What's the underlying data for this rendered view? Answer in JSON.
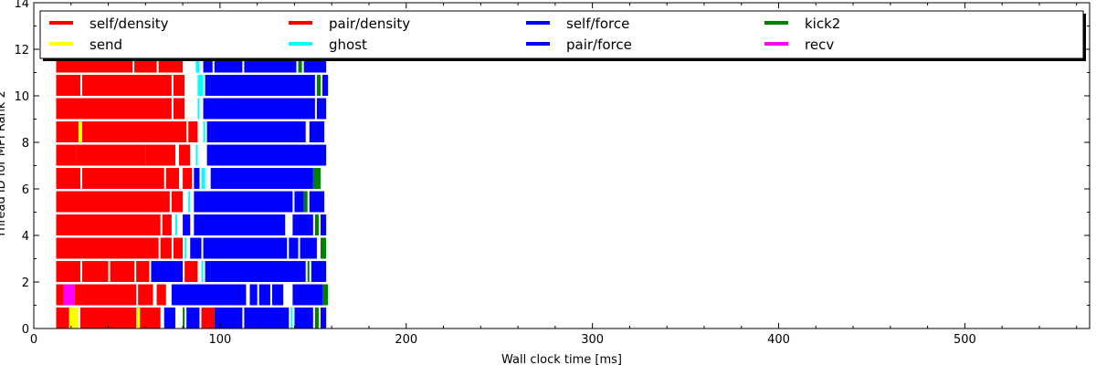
{
  "chart_data": {
    "type": "bar",
    "orientation": "horizontal-timeline",
    "xlabel": "Wall clock time [ms]",
    "ylabel": "Thread ID for MPI Rank 2",
    "xlim": [
      0,
      567
    ],
    "ylim": [
      0,
      14
    ],
    "x_ticks": [
      0,
      100,
      200,
      300,
      400,
      500
    ],
    "y_ticks": [
      0,
      2,
      4,
      6,
      8,
      10,
      12,
      14
    ],
    "grid": false,
    "legend": {
      "placement": "top",
      "columns": 5,
      "entries": [
        {
          "name": "self/density",
          "color": "#ff0000"
        },
        {
          "name": "send",
          "color": "#ffff00"
        },
        {
          "name": "pair/density",
          "color": "#ff0000"
        },
        {
          "name": "ghost",
          "color": "#00ffff"
        },
        {
          "name": "self/force",
          "color": "#0000ff"
        },
        {
          "name": "pair/force",
          "color": "#0000ff"
        },
        {
          "name": "kick2",
          "color": "#008000"
        },
        {
          "name": "recv",
          "color": "#ff00ff"
        }
      ]
    },
    "series": [
      {
        "thread": 0,
        "segments": [
          {
            "task": "pair/density",
            "start": 12,
            "end": 19
          },
          {
            "task": "send",
            "start": 19,
            "end": 24
          },
          {
            "task": "pair/density",
            "start": 25,
            "end": 55
          },
          {
            "task": "send",
            "start": 55,
            "end": 57
          },
          {
            "task": "pair/density",
            "start": 57,
            "end": 68
          },
          {
            "task": "pair/force",
            "start": 70,
            "end": 76
          },
          {
            "task": "kick2",
            "start": 80,
            "end": 81
          },
          {
            "task": "pair/force",
            "start": 82,
            "end": 89
          },
          {
            "task": "pair/density",
            "start": 90,
            "end": 97
          },
          {
            "task": "pair/force",
            "start": 97,
            "end": 112
          },
          {
            "task": "pair/force",
            "start": 113,
            "end": 137
          },
          {
            "task": "ghost",
            "start": 138,
            "end": 139
          },
          {
            "task": "pair/force",
            "start": 140,
            "end": 150
          },
          {
            "task": "kick2",
            "start": 151,
            "end": 153
          },
          {
            "task": "pair/force",
            "start": 154,
            "end": 157
          }
        ]
      },
      {
        "thread": 1,
        "segments": [
          {
            "task": "pair/density",
            "start": 12,
            "end": 16
          },
          {
            "task": "recv",
            "start": 16,
            "end": 22
          },
          {
            "task": "pair/density",
            "start": 22,
            "end": 55
          },
          {
            "task": "pair/density",
            "start": 56,
            "end": 64
          },
          {
            "task": "pair/density",
            "start": 66,
            "end": 71
          },
          {
            "task": "pair/force",
            "start": 74,
            "end": 114
          },
          {
            "task": "pair/force",
            "start": 116,
            "end": 120
          },
          {
            "task": "pair/force",
            "start": 121,
            "end": 127
          },
          {
            "task": "pair/force",
            "start": 128,
            "end": 134
          },
          {
            "task": "pair/force",
            "start": 139,
            "end": 155
          },
          {
            "task": "kick2",
            "start": 155,
            "end": 158
          }
        ]
      },
      {
        "thread": 2,
        "segments": [
          {
            "task": "pair/density",
            "start": 12,
            "end": 25
          },
          {
            "task": "pair/density",
            "start": 26,
            "end": 40
          },
          {
            "task": "pair/density",
            "start": 41,
            "end": 54
          },
          {
            "task": "pair/density",
            "start": 55,
            "end": 62
          },
          {
            "task": "pair/force",
            "start": 63,
            "end": 80
          },
          {
            "task": "pair/density",
            "start": 81,
            "end": 88
          },
          {
            "task": "ghost",
            "start": 90,
            "end": 91
          },
          {
            "task": "pair/force",
            "start": 92,
            "end": 146
          },
          {
            "task": "kick2",
            "start": 147,
            "end": 148
          },
          {
            "task": "pair/force",
            "start": 149,
            "end": 157
          }
        ]
      },
      {
        "thread": 3,
        "segments": [
          {
            "task": "pair/density",
            "start": 12,
            "end": 67
          },
          {
            "task": "pair/density",
            "start": 68,
            "end": 74
          },
          {
            "task": "pair/density",
            "start": 75,
            "end": 80
          },
          {
            "task": "ghost",
            "start": 81,
            "end": 82
          },
          {
            "task": "pair/force",
            "start": 84,
            "end": 90
          },
          {
            "task": "pair/force",
            "start": 91,
            "end": 136
          },
          {
            "task": "pair/force",
            "start": 137,
            "end": 142
          },
          {
            "task": "pair/force",
            "start": 143,
            "end": 152
          },
          {
            "task": "kick2",
            "start": 154,
            "end": 157
          }
        ]
      },
      {
        "thread": 4,
        "segments": [
          {
            "task": "pair/density",
            "start": 12,
            "end": 68
          },
          {
            "task": "pair/density",
            "start": 69,
            "end": 74
          },
          {
            "task": "ghost",
            "start": 76,
            "end": 77
          },
          {
            "task": "pair/force",
            "start": 80,
            "end": 84
          },
          {
            "task": "pair/force",
            "start": 86,
            "end": 135
          },
          {
            "task": "pair/force",
            "start": 139,
            "end": 150
          },
          {
            "task": "kick2",
            "start": 151,
            "end": 153
          },
          {
            "task": "pair/force",
            "start": 154,
            "end": 157
          }
        ]
      },
      {
        "thread": 5,
        "segments": [
          {
            "task": "pair/density",
            "start": 12,
            "end": 73
          },
          {
            "task": "pair/density",
            "start": 74,
            "end": 80
          },
          {
            "task": "ghost",
            "start": 83,
            "end": 84
          },
          {
            "task": "pair/force",
            "start": 86,
            "end": 139
          },
          {
            "task": "pair/force",
            "start": 140,
            "end": 145
          },
          {
            "task": "kick2",
            "start": 145,
            "end": 147
          },
          {
            "task": "pair/force",
            "start": 148,
            "end": 156
          }
        ]
      },
      {
        "thread": 6,
        "segments": [
          {
            "task": "pair/density",
            "start": 12,
            "end": 25
          },
          {
            "task": "pair/density",
            "start": 26,
            "end": 70
          },
          {
            "task": "pair/density",
            "start": 71,
            "end": 78
          },
          {
            "task": "pair/density",
            "start": 80,
            "end": 85
          },
          {
            "task": "pair/force",
            "start": 86,
            "end": 89
          },
          {
            "task": "ghost",
            "start": 90,
            "end": 92
          },
          {
            "task": "pair/force",
            "start": 95,
            "end": 150
          },
          {
            "task": "kick2",
            "start": 150,
            "end": 154
          }
        ]
      },
      {
        "thread": 7,
        "segments": [
          {
            "task": "pair/density",
            "start": 12,
            "end": 23
          },
          {
            "task": "pair/density",
            "start": 23,
            "end": 60
          },
          {
            "task": "pair/density",
            "start": 60,
            "end": 76
          },
          {
            "task": "pair/density",
            "start": 78,
            "end": 84
          },
          {
            "task": "ghost",
            "start": 87,
            "end": 88
          },
          {
            "task": "pair/force",
            "start": 93,
            "end": 157
          }
        ]
      },
      {
        "thread": 8,
        "segments": [
          {
            "task": "pair/density",
            "start": 12,
            "end": 24
          },
          {
            "task": "send",
            "start": 24,
            "end": 26
          },
          {
            "task": "pair/density",
            "start": 26,
            "end": 82
          },
          {
            "task": "pair/density",
            "start": 83,
            "end": 88
          },
          {
            "task": "ghost",
            "start": 91,
            "end": 92
          },
          {
            "task": "pair/force",
            "start": 93,
            "end": 146
          },
          {
            "task": "pair/force",
            "start": 148,
            "end": 156
          }
        ]
      },
      {
        "thread": 9,
        "segments": [
          {
            "task": "pair/density",
            "start": 12,
            "end": 74
          },
          {
            "task": "pair/density",
            "start": 75,
            "end": 81
          },
          {
            "task": "ghost",
            "start": 88,
            "end": 89
          },
          {
            "task": "pair/force",
            "start": 91,
            "end": 151
          },
          {
            "task": "pair/force",
            "start": 152,
            "end": 157
          }
        ]
      },
      {
        "thread": 10,
        "segments": [
          {
            "task": "pair/density",
            "start": 12,
            "end": 25
          },
          {
            "task": "pair/density",
            "start": 26,
            "end": 74
          },
          {
            "task": "pair/density",
            "start": 75,
            "end": 81
          },
          {
            "task": "ghost",
            "start": 88,
            "end": 91
          },
          {
            "task": "pair/force",
            "start": 92,
            "end": 151
          },
          {
            "task": "kick2",
            "start": 152,
            "end": 154
          },
          {
            "task": "pair/force",
            "start": 155,
            "end": 158
          }
        ]
      },
      {
        "thread": 11,
        "segments": [
          {
            "task": "pair/density",
            "start": 12,
            "end": 53
          },
          {
            "task": "pair/density",
            "start": 54,
            "end": 66
          },
          {
            "task": "pair/density",
            "start": 67,
            "end": 80
          },
          {
            "task": "ghost",
            "start": 87,
            "end": 89
          },
          {
            "task": "pair/force",
            "start": 91,
            "end": 96
          },
          {
            "task": "pair/force",
            "start": 97,
            "end": 112
          },
          {
            "task": "pair/force",
            "start": 113,
            "end": 141
          },
          {
            "task": "kick2",
            "start": 142,
            "end": 144
          },
          {
            "task": "pair/force",
            "start": 145,
            "end": 157
          }
        ]
      }
    ]
  }
}
